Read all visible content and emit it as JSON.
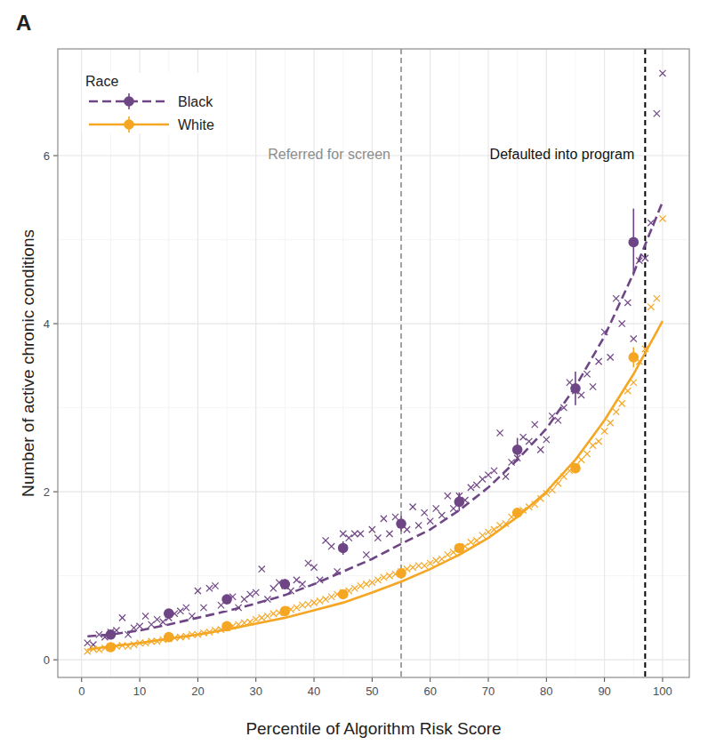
{
  "chart_data": {
    "type": "line",
    "title": "A",
    "x_label": "Percentile of Algorithm Risk Score",
    "y_label": "Number of active chronic conditions",
    "legend_title": "Race",
    "legend": "top-left",
    "grid": true,
    "xlim": [
      -4.1,
      104.6
    ],
    "ylim": [
      -0.21,
      7.27
    ],
    "xticks": [
      0,
      10,
      20,
      30,
      40,
      50,
      60,
      70,
      80,
      90,
      100
    ],
    "yticks": [
      0,
      2,
      4,
      6
    ],
    "annotations": [
      {
        "text": "Referred for screen",
        "x": 55,
        "color": "#a3a3a3",
        "line_style": "dashed"
      },
      {
        "text": "Defaulted into program",
        "x": 97,
        "color": "#000000",
        "line_style": "dashed"
      }
    ],
    "series": [
      {
        "name": "Black",
        "color": "#6f4685",
        "line_style": "dashed",
        "marker": "circle",
        "x": [
          1,
          5,
          10,
          15,
          20,
          25,
          30,
          35,
          40,
          45,
          50,
          55,
          60,
          65,
          70,
          75,
          80,
          85,
          90,
          95,
          100
        ],
        "values": [
          0.28,
          0.3,
          0.35,
          0.42,
          0.5,
          0.58,
          0.67,
          0.77,
          0.9,
          1.05,
          1.2,
          1.38,
          1.55,
          1.78,
          2.05,
          2.38,
          2.75,
          3.25,
          3.85,
          4.6,
          5.45
        ],
        "means": {
          "x": [
            5,
            15,
            25,
            35,
            45,
            55,
            65,
            75,
            85,
            95
          ],
          "values": [
            0.3,
            0.55,
            0.72,
            0.9,
            1.33,
            1.62,
            1.88,
            2.5,
            3.23,
            4.97
          ],
          "errors": [
            0.03,
            0.05,
            0.05,
            0.06,
            0.08,
            0.09,
            0.11,
            0.14,
            0.2,
            0.4
          ]
        },
        "points": {
          "marker": "x",
          "x": [
            1,
            2,
            3,
            4,
            5,
            6,
            7,
            8,
            9,
            10,
            11,
            12,
            13,
            14,
            15,
            16,
            17,
            18,
            19,
            20,
            21,
            22,
            23,
            24,
            25,
            26,
            27,
            28,
            29,
            30,
            31,
            32,
            33,
            34,
            35,
            36,
            37,
            38,
            39,
            40,
            41,
            42,
            43,
            44,
            45,
            46,
            47,
            48,
            49,
            50,
            51,
            52,
            53,
            54,
            55,
            56,
            57,
            58,
            59,
            60,
            61,
            62,
            63,
            64,
            65,
            66,
            67,
            68,
            69,
            70,
            71,
            72,
            73,
            74,
            75,
            76,
            77,
            78,
            79,
            80,
            81,
            82,
            83,
            84,
            85,
            86,
            87,
            88,
            89,
            90,
            91,
            92,
            93,
            94,
            95,
            96,
            97,
            98,
            99,
            100
          ],
          "values": [
            0.2,
            0.18,
            0.3,
            0.27,
            0.33,
            0.35,
            0.5,
            0.3,
            0.38,
            0.4,
            0.52,
            0.42,
            0.48,
            0.45,
            0.5,
            0.55,
            0.58,
            0.62,
            0.52,
            0.82,
            0.62,
            0.85,
            0.88,
            0.65,
            0.72,
            0.75,
            0.62,
            0.72,
            0.78,
            0.8,
            1.08,
            0.72,
            0.85,
            0.92,
            0.88,
            0.82,
            0.95,
            0.9,
            1.15,
            1.1,
            0.95,
            1.42,
            1.35,
            1.05,
            1.5,
            1.45,
            1.5,
            1.5,
            1.25,
            1.55,
            1.45,
            1.68,
            1.5,
            1.7,
            1.62,
            1.55,
            1.82,
            1.6,
            1.75,
            1.65,
            1.8,
            1.72,
            1.95,
            1.8,
            1.95,
            1.9,
            2.05,
            2.08,
            2.15,
            2.2,
            2.25,
            2.7,
            2.18,
            2.35,
            2.4,
            2.65,
            2.6,
            2.8,
            2.5,
            2.62,
            2.9,
            2.85,
            3.0,
            3.3,
            3.2,
            3.15,
            3.4,
            3.25,
            3.55,
            3.9,
            3.6,
            4.3,
            4.0,
            4.25,
            3.82,
            4.75,
            4.78,
            5.2,
            6.5,
            6.98
          ]
        }
      },
      {
        "name": "White",
        "color": "#f5a623",
        "line_style": "solid",
        "marker": "circle",
        "x": [
          1,
          5,
          10,
          15,
          20,
          25,
          30,
          35,
          40,
          45,
          50,
          55,
          60,
          65,
          70,
          75,
          80,
          85,
          90,
          95,
          100
        ],
        "values": [
          0.12,
          0.16,
          0.2,
          0.25,
          0.3,
          0.36,
          0.43,
          0.5,
          0.59,
          0.68,
          0.8,
          0.93,
          1.08,
          1.25,
          1.45,
          1.7,
          2.0,
          2.38,
          2.85,
          3.4,
          4.03
        ],
        "means": {
          "x": [
            5,
            15,
            25,
            35,
            45,
            55,
            65,
            75,
            85,
            95
          ],
          "values": [
            0.15,
            0.27,
            0.4,
            0.58,
            0.78,
            1.03,
            1.33,
            1.75,
            2.28,
            3.6
          ],
          "errors": [
            0.01,
            0.02,
            0.02,
            0.02,
            0.03,
            0.03,
            0.04,
            0.05,
            0.06,
            0.12
          ]
        },
        "points": {
          "marker": "x",
          "x": [
            1,
            2,
            3,
            4,
            5,
            6,
            7,
            8,
            9,
            10,
            11,
            12,
            13,
            14,
            15,
            16,
            17,
            18,
            19,
            20,
            21,
            22,
            23,
            24,
            25,
            26,
            27,
            28,
            29,
            30,
            31,
            32,
            33,
            34,
            35,
            36,
            37,
            38,
            39,
            40,
            41,
            42,
            43,
            44,
            45,
            46,
            47,
            48,
            49,
            50,
            51,
            52,
            53,
            54,
            55,
            56,
            57,
            58,
            59,
            60,
            61,
            62,
            63,
            64,
            65,
            66,
            67,
            68,
            69,
            70,
            71,
            72,
            73,
            74,
            75,
            76,
            77,
            78,
            79,
            80,
            81,
            82,
            83,
            84,
            85,
            86,
            87,
            88,
            89,
            90,
            91,
            92,
            93,
            94,
            95,
            96,
            97,
            98,
            99,
            100
          ],
          "values": [
            0.1,
            0.13,
            0.12,
            0.14,
            0.15,
            0.16,
            0.17,
            0.16,
            0.18,
            0.2,
            0.2,
            0.22,
            0.22,
            0.24,
            0.25,
            0.26,
            0.27,
            0.28,
            0.3,
            0.3,
            0.32,
            0.33,
            0.35,
            0.36,
            0.38,
            0.4,
            0.42,
            0.44,
            0.45,
            0.48,
            0.5,
            0.52,
            0.55,
            0.56,
            0.58,
            0.6,
            0.62,
            0.65,
            0.66,
            0.68,
            0.7,
            0.72,
            0.75,
            0.78,
            0.8,
            0.82,
            0.85,
            0.88,
            0.9,
            0.92,
            0.95,
            0.98,
            1.0,
            1.02,
            1.05,
            1.08,
            1.1,
            1.12,
            1.12,
            1.15,
            1.18,
            1.2,
            1.25,
            1.28,
            1.32,
            1.35,
            1.4,
            1.42,
            1.48,
            1.52,
            1.55,
            1.6,
            1.62,
            1.7,
            1.75,
            1.78,
            1.82,
            1.85,
            1.92,
            1.98,
            2.02,
            2.1,
            2.18,
            2.25,
            2.3,
            2.38,
            2.45,
            2.55,
            2.6,
            2.72,
            2.82,
            2.95,
            3.05,
            3.2,
            3.3,
            3.55,
            3.7,
            4.2,
            4.3,
            5.25
          ]
        }
      }
    ]
  }
}
